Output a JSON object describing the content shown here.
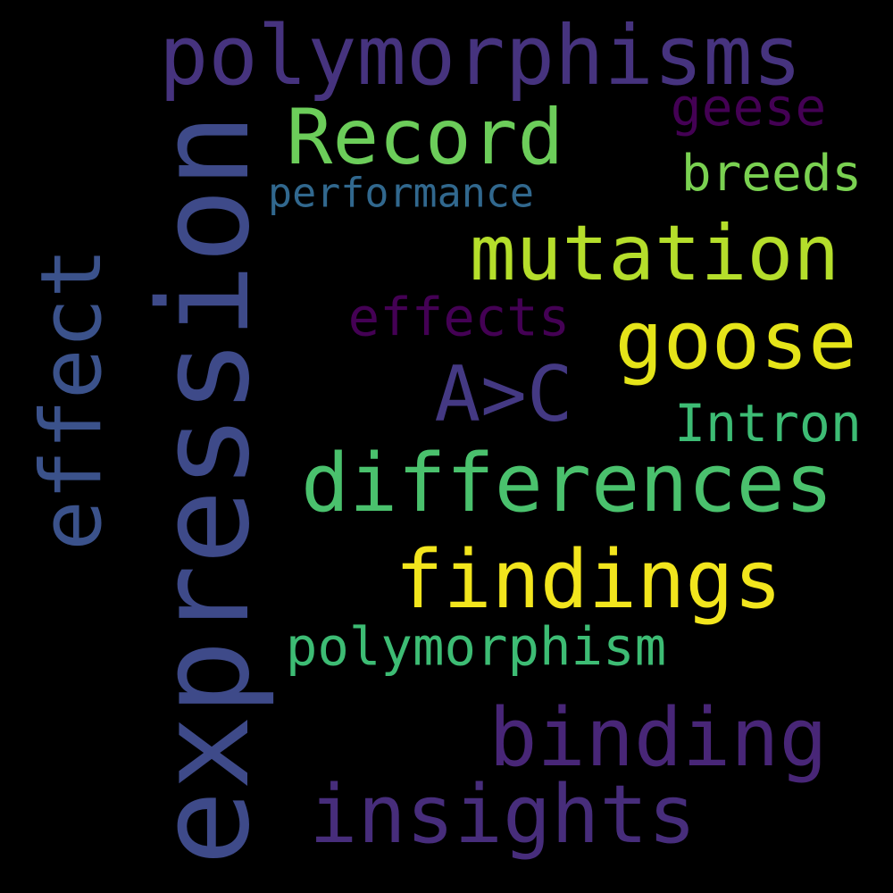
{
  "words": {
    "polymorphisms": "polymorphisms",
    "expression": "expression",
    "record": "Record",
    "geese": "geese",
    "breeds": "breeds",
    "performance": "performance",
    "mutation": "mutation",
    "effect": "effect",
    "effects": "effects",
    "goose": "goose",
    "a_gt_c": "A>C",
    "intron": "Intron",
    "differences": "differences",
    "findings": "findings",
    "polymorphism": "polymorphism",
    "binding": "binding",
    "insights": "insights"
  },
  "colors": {
    "background": "#000000",
    "polymorphisms": "#46337e",
    "expression": "#3e4a89",
    "record": "#6ccd5a",
    "geese": "#440154",
    "breeds": "#7ad151",
    "performance": "#31688e",
    "mutation": "#b5de2b",
    "effect": "#3b528b",
    "effects": "#440154",
    "goose": "#e5e419",
    "a_gt_c": "#443983",
    "intron": "#3dbc74",
    "differences": "#4ac16d",
    "findings": "#f2e51d",
    "polymorphism": "#3dbc74",
    "binding": "#482677",
    "insights": "#472d7b"
  }
}
